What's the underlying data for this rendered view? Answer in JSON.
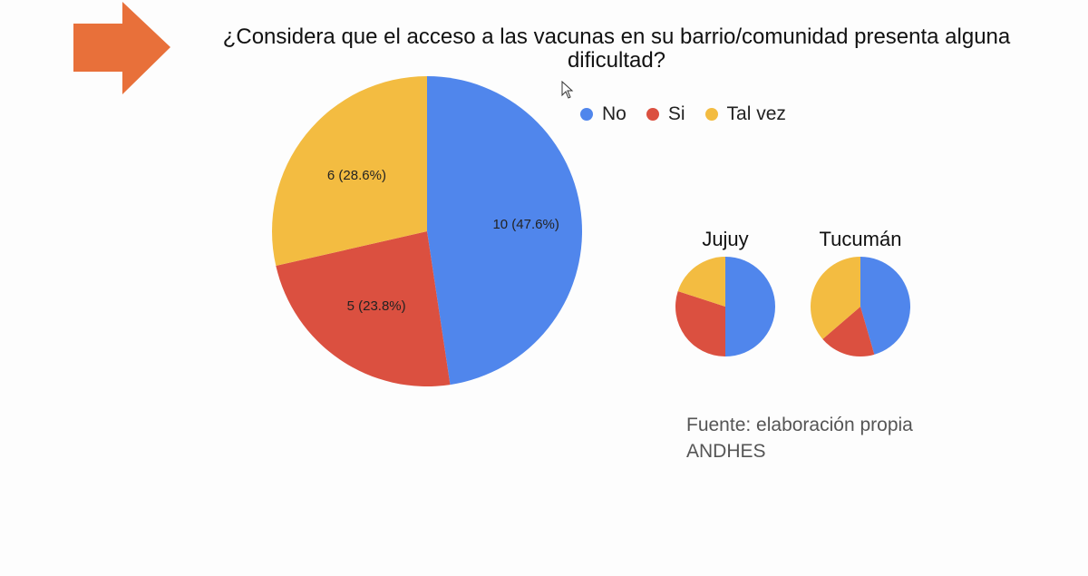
{
  "arrow": {
    "icon": "arrow-right-icon",
    "color": "#E8703A"
  },
  "cursor": {
    "icon": "mouse-pointer-icon"
  },
  "chart_data": [
    {
      "type": "pie",
      "title": "¿Considera que el acceso a las vacunas en su barrio/comunidad presenta alguna dificultad?",
      "categories": [
        "No",
        "Si",
        "Tal vez"
      ],
      "values": [
        10,
        5,
        6
      ],
      "labels": [
        "10 (47.6%)",
        "5 (23.8%)",
        "6 (28.6%)"
      ],
      "colors": [
        "#5086EC",
        "#DB5040",
        "#F3BC41"
      ],
      "legend_position": "top-right"
    },
    {
      "type": "pie",
      "title": "Jujuy",
      "categories": [
        "No",
        "Si",
        "Tal vez"
      ],
      "values": [
        50,
        30,
        20
      ],
      "colors": [
        "#5086EC",
        "#DB5040",
        "#F3BC41"
      ]
    },
    {
      "type": "pie",
      "title": "Tucumán",
      "categories": [
        "No",
        "Si",
        "Tal vez"
      ],
      "values": [
        45.5,
        18.2,
        36.3
      ],
      "colors": [
        "#5086EC",
        "#DB5040",
        "#F3BC41"
      ]
    }
  ],
  "source": {
    "line1": "Fuente: elaboración propia",
    "line2": "ANDHES"
  }
}
